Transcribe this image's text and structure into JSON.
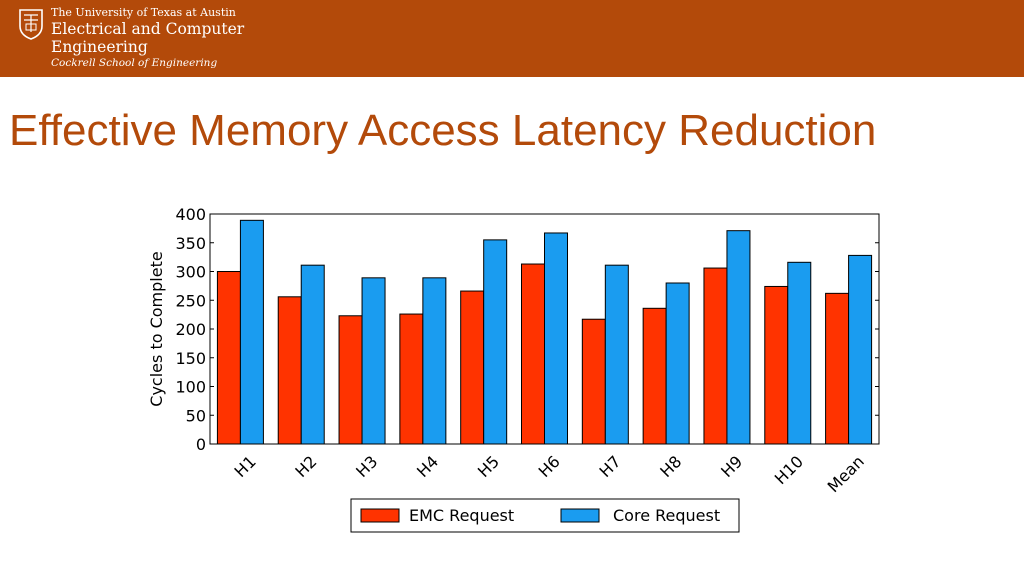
{
  "header": {
    "university": "The University of Texas at Austin",
    "department_line1": "Electrical and Computer",
    "department_line2": "Engineering",
    "school": "Cockrell School of Engineering"
  },
  "slide": {
    "title": "Effective Memory Access Latency Reduction"
  },
  "colors": {
    "header_bg": "#b34a0a",
    "emc": "#ff3300",
    "core": "#1a9cf0"
  },
  "chart_data": {
    "type": "bar",
    "title": "",
    "xlabel": "",
    "ylabel": "Cycles to Complete",
    "ylim": [
      0,
      400
    ],
    "yticks": [
      0,
      50,
      100,
      150,
      200,
      250,
      300,
      350,
      400
    ],
    "categories": [
      "H1",
      "H2",
      "H3",
      "H4",
      "H5",
      "H6",
      "H7",
      "H8",
      "H9",
      "H10",
      "Mean"
    ],
    "series": [
      {
        "name": "EMC Request",
        "color": "#ff3300",
        "values": [
          300,
          256,
          223,
          226,
          266,
          313,
          217,
          236,
          306,
          274,
          262
        ]
      },
      {
        "name": "Core Request",
        "color": "#1a9cf0",
        "values": [
          389,
          311,
          289,
          289,
          355,
          367,
          311,
          280,
          371,
          316,
          328
        ]
      }
    ],
    "legend_position": "bottom-center",
    "grid": false
  }
}
